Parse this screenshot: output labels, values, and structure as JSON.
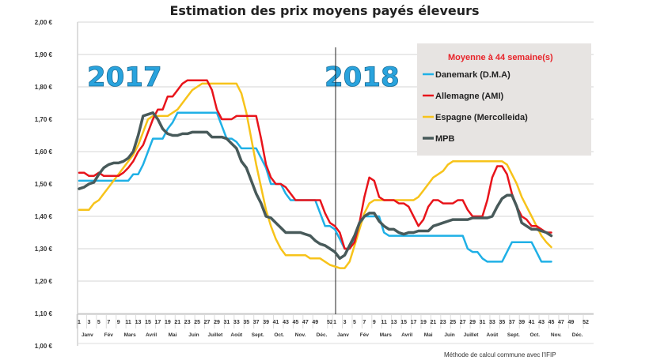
{
  "chart_data": {
    "type": "line",
    "title": "Estimation des prix moyens payés éleveurs",
    "xlabel": "",
    "ylabel": "",
    "ylim": [
      1.0,
      2.0
    ],
    "yticks": [
      "1,00 €",
      "1,10 €",
      "1,20 €",
      "1,30 €",
      "1,40 €",
      "1,50 €",
      "1,60 €",
      "1,70 €",
      "1,80 €",
      "1,90 €",
      "2,00 €"
    ],
    "grid": true,
    "years": [
      "2017",
      "2018"
    ],
    "week_tick_labels_2017": [
      "1",
      "3",
      "5",
      "7",
      "9",
      "11",
      "13",
      "15",
      "17",
      "19",
      "21",
      "23",
      "25",
      "27",
      "29",
      "31",
      "33",
      "35",
      "37",
      "39",
      "41",
      "43",
      "45",
      "47",
      "49",
      "52"
    ],
    "week_tick_labels_2018": [
      "1",
      "3",
      "5",
      "7",
      "9",
      "11",
      "13",
      "15",
      "17",
      "19",
      "21",
      "23",
      "25",
      "27",
      "29",
      "31",
      "33",
      "35",
      "37",
      "39",
      "41",
      "43",
      "45",
      "47",
      "49",
      "52"
    ],
    "months": [
      "Janv",
      "Fév",
      "Mars",
      "Avril",
      "Mai",
      "Juin",
      "Juillet",
      "Août",
      "Sept.",
      "Oct.",
      "Nov.",
      "Déc."
    ],
    "legend": {
      "title": "Moyenne à  44 semaine(s)",
      "placement": "top-right"
    },
    "note": "Méthode de calcul commune avec l'IFIP",
    "series": [
      {
        "name": "Danemark (D.M.A)",
        "color": "#1fb0e6",
        "values_2017": [
          1.51,
          1.51,
          1.51,
          1.51,
          1.51,
          1.51,
          1.51,
          1.51,
          1.51,
          1.51,
          1.51,
          1.53,
          1.53,
          1.56,
          1.6,
          1.64,
          1.64,
          1.64,
          1.67,
          1.69,
          1.72,
          1.72,
          1.72,
          1.72,
          1.72,
          1.72,
          1.72,
          1.72,
          1.72,
          1.68,
          1.64,
          1.64,
          1.63,
          1.61,
          1.61,
          1.61,
          1.61,
          1.58,
          1.55,
          1.5,
          1.5,
          1.5,
          1.47,
          1.45,
          1.45,
          1.45,
          1.45,
          1.45,
          1.45,
          1.41,
          1.37,
          1.37
        ],
        "values_2018": [
          1.36,
          1.33,
          1.3,
          1.3,
          1.33,
          1.37,
          1.4,
          1.4,
          1.4,
          1.4,
          1.35,
          1.34,
          1.34,
          1.34,
          1.34,
          1.34,
          1.34,
          1.34,
          1.34,
          1.34,
          1.34,
          1.34,
          1.34,
          1.34,
          1.34,
          1.34,
          1.34,
          1.3,
          1.29,
          1.29,
          1.27,
          1.26,
          1.26,
          1.26,
          1.26,
          1.29,
          1.32,
          1.32,
          1.32,
          1.32,
          1.32,
          1.29,
          1.26,
          1.26,
          1.26
        ]
      },
      {
        "name": "Allemagne (AMI)",
        "color": "#e8141b",
        "values_2017": [
          1.535,
          1.535,
          1.525,
          1.525,
          1.535,
          1.525,
          1.525,
          1.525,
          1.525,
          1.535,
          1.55,
          1.57,
          1.6,
          1.62,
          1.66,
          1.7,
          1.73,
          1.73,
          1.77,
          1.77,
          1.79,
          1.81,
          1.82,
          1.82,
          1.82,
          1.82,
          1.82,
          1.79,
          1.73,
          1.7,
          1.7,
          1.7,
          1.71,
          1.71,
          1.71,
          1.71,
          1.71,
          1.64,
          1.56,
          1.52,
          1.5,
          1.5,
          1.49,
          1.47,
          1.45,
          1.45,
          1.45,
          1.45,
          1.45,
          1.45,
          1.41,
          1.38
        ],
        "values_2018": [
          1.37,
          1.35,
          1.3,
          1.3,
          1.32,
          1.38,
          1.46,
          1.52,
          1.51,
          1.46,
          1.45,
          1.45,
          1.45,
          1.44,
          1.44,
          1.43,
          1.4,
          1.37,
          1.39,
          1.43,
          1.45,
          1.45,
          1.44,
          1.44,
          1.44,
          1.45,
          1.45,
          1.42,
          1.4,
          1.4,
          1.4,
          1.45,
          1.52,
          1.555,
          1.555,
          1.53,
          1.47,
          1.43,
          1.4,
          1.39,
          1.37,
          1.37,
          1.36,
          1.35,
          1.35
        ]
      },
      {
        "name": "Espagne (Mercolleida)",
        "color": "#f7c31a",
        "values_2017": [
          1.42,
          1.42,
          1.42,
          1.44,
          1.45,
          1.47,
          1.49,
          1.51,
          1.53,
          1.55,
          1.57,
          1.59,
          1.62,
          1.66,
          1.7,
          1.71,
          1.71,
          1.71,
          1.71,
          1.72,
          1.73,
          1.75,
          1.77,
          1.79,
          1.8,
          1.81,
          1.81,
          1.81,
          1.81,
          1.81,
          1.81,
          1.81,
          1.81,
          1.78,
          1.72,
          1.64,
          1.56,
          1.49,
          1.42,
          1.37,
          1.33,
          1.3,
          1.28,
          1.28,
          1.28,
          1.28,
          1.28,
          1.27,
          1.27,
          1.27,
          1.26,
          1.25
        ],
        "values_2018": [
          1.245,
          1.24,
          1.24,
          1.26,
          1.31,
          1.36,
          1.41,
          1.44,
          1.45,
          1.45,
          1.45,
          1.45,
          1.45,
          1.45,
          1.45,
          1.45,
          1.45,
          1.46,
          1.48,
          1.5,
          1.52,
          1.53,
          1.54,
          1.56,
          1.57,
          1.57,
          1.57,
          1.57,
          1.57,
          1.57,
          1.57,
          1.57,
          1.57,
          1.57,
          1.57,
          1.56,
          1.53,
          1.5,
          1.46,
          1.43,
          1.4,
          1.37,
          1.34,
          1.32,
          1.305
        ]
      },
      {
        "name": "MPB",
        "color": "#485a5a",
        "values_2017": [
          1.485,
          1.49,
          1.5,
          1.505,
          1.53,
          1.55,
          1.56,
          1.565,
          1.565,
          1.57,
          1.58,
          1.6,
          1.65,
          1.71,
          1.715,
          1.72,
          1.7,
          1.67,
          1.655,
          1.65,
          1.65,
          1.655,
          1.655,
          1.66,
          1.66,
          1.66,
          1.66,
          1.645,
          1.645,
          1.645,
          1.64,
          1.625,
          1.61,
          1.57,
          1.55,
          1.51,
          1.47,
          1.44,
          1.4,
          1.395,
          1.38,
          1.365,
          1.35,
          1.35,
          1.35,
          1.35,
          1.345,
          1.34,
          1.325,
          1.315,
          1.31,
          1.3
        ],
        "values_2018": [
          1.29,
          1.27,
          1.28,
          1.31,
          1.34,
          1.38,
          1.4,
          1.41,
          1.41,
          1.385,
          1.37,
          1.36,
          1.36,
          1.35,
          1.345,
          1.35,
          1.35,
          1.355,
          1.355,
          1.355,
          1.37,
          1.375,
          1.38,
          1.385,
          1.39,
          1.39,
          1.39,
          1.39,
          1.395,
          1.395,
          1.395,
          1.395,
          1.4,
          1.43,
          1.455,
          1.465,
          1.465,
          1.43,
          1.38,
          1.37,
          1.36,
          1.36,
          1.355,
          1.35,
          1.34
        ]
      }
    ]
  }
}
